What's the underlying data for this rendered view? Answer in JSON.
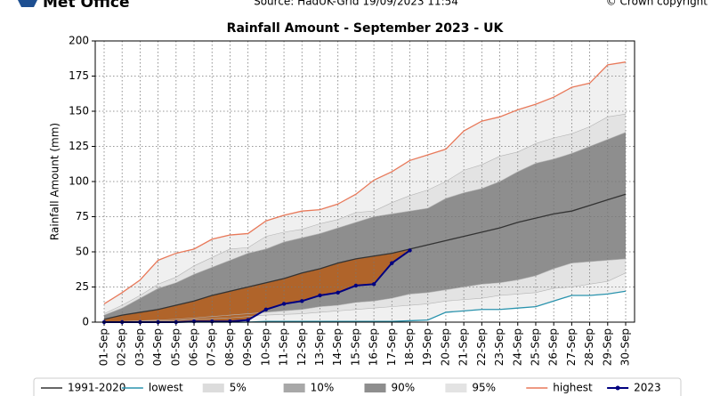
{
  "chart_data": {
    "type": "line",
    "logo": "Met Office",
    "source": "Source: HadUK-Grid 19/09/2023 11:54",
    "copyright": "© Crown copyright",
    "title": "Rainfall Amount - September 2023 - UK",
    "ylabel": "Rainfall Amount (mm)",
    "ylim": [
      0,
      200
    ],
    "yticks": [
      0,
      25,
      50,
      75,
      100,
      125,
      150,
      175,
      200
    ],
    "grid": true,
    "legend": "bottom",
    "categories": [
      "01-Sep",
      "02-Sep",
      "03-Sep",
      "04-Sep",
      "05-Sep",
      "06-Sep",
      "07-Sep",
      "08-Sep",
      "09-Sep",
      "10-Sep",
      "11-Sep",
      "12-Sep",
      "13-Sep",
      "14-Sep",
      "15-Sep",
      "16-Sep",
      "17-Sep",
      "18-Sep",
      "19-Sep",
      "20-Sep",
      "21-Sep",
      "22-Sep",
      "23-Sep",
      "24-Sep",
      "25-Sep",
      "26-Sep",
      "27-Sep",
      "28-Sep",
      "29-Sep",
      "30-Sep"
    ],
    "series": [
      {
        "name": "1991-2020",
        "kind": "line",
        "color": "#333333",
        "values": [
          2,
          5,
          7,
          9,
          12,
          15,
          19,
          22,
          25,
          28,
          31,
          35,
          38,
          42,
          45,
          47,
          49,
          52,
          55,
          58,
          61,
          64,
          67,
          71,
          74,
          77,
          79,
          83,
          87,
          91
        ]
      },
      {
        "name": "lowest",
        "kind": "line",
        "color": "#2a93ad",
        "values": [
          0,
          0,
          0,
          0,
          0,
          0,
          0,
          0,
          0,
          0.5,
          0.5,
          0.5,
          0.5,
          0.5,
          0.5,
          0.5,
          0.5,
          1,
          1.5,
          7,
          8,
          9,
          9,
          10,
          11,
          15,
          19,
          19,
          20,
          22
        ]
      },
      {
        "name": "5%",
        "kind": "band",
        "color": "#dcdcdc",
        "values": [
          0,
          0,
          0.5,
          1,
          1,
          2,
          2.5,
          3,
          4,
          5,
          5.5,
          6,
          7,
          8,
          9,
          10,
          11,
          12,
          13,
          15,
          16,
          17,
          19,
          20,
          21,
          24,
          25,
          27,
          29,
          35
        ]
      },
      {
        "name": "10%",
        "kind": "band",
        "color": "#a8a8a8",
        "values": [
          0,
          0.5,
          1,
          1.5,
          2,
          3,
          4,
          5,
          6,
          7,
          8,
          9,
          11,
          12,
          14,
          15,
          17,
          20,
          21,
          23,
          25,
          27,
          28,
          30,
          33,
          38,
          42,
          43,
          44,
          45
        ]
      },
      {
        "name": "90%",
        "kind": "band",
        "color": "#8e8e8e",
        "values": [
          5,
          10,
          17,
          24,
          28,
          34,
          39,
          44,
          49,
          52,
          57,
          60,
          63,
          67,
          71,
          75,
          77,
          79,
          81,
          88,
          92,
          95,
          100,
          107,
          113,
          116,
          120,
          125,
          130,
          135
        ]
      },
      {
        "name": "95%",
        "kind": "band",
        "color": "#e3e3e3",
        "values": [
          6,
          12,
          19,
          27,
          32,
          40,
          46,
          52,
          53,
          61,
          64,
          66,
          70,
          73,
          78,
          79,
          85,
          90,
          94,
          100,
          108,
          112,
          118,
          121,
          127,
          131,
          134,
          139,
          146,
          148
        ]
      },
      {
        "name": "highest",
        "kind": "line",
        "color": "#e8795a",
        "values": [
          13,
          21,
          30,
          44,
          49,
          52,
          59,
          62,
          63,
          72,
          76,
          79,
          80,
          84,
          91,
          101,
          107,
          115,
          119,
          123,
          136,
          143,
          146,
          151,
          155,
          160,
          167,
          170,
          183,
          185
        ]
      },
      {
        "name": "2023",
        "kind": "line",
        "color": "#000080",
        "markers": true,
        "values": [
          0,
          0,
          0,
          0,
          0,
          0.5,
          0.5,
          0.5,
          1.5,
          9,
          13,
          15,
          19,
          21,
          26,
          27,
          42,
          51,
          null,
          null,
          null,
          null,
          null,
          null,
          null,
          null,
          null,
          null,
          null,
          null
        ]
      }
    ]
  }
}
